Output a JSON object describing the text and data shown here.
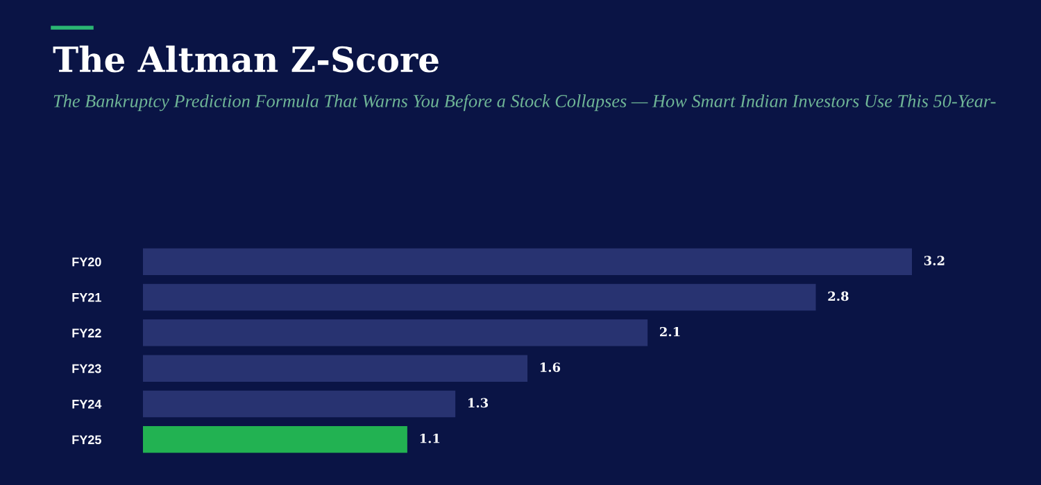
{
  "chart_data": {
    "type": "bar",
    "orientation": "horizontal",
    "title": "The Altman Z-Score",
    "subtitle": "The Bankruptcy Prediction Formula That Warns You Before a Stock Collapses — How Smart Indian Investors Use This 50-Year-",
    "categories": [
      "FY20",
      "FY21",
      "FY22",
      "FY23",
      "FY24",
      "FY25"
    ],
    "values": [
      3.2,
      2.8,
      2.1,
      1.6,
      1.3,
      1.1
    ],
    "colors": [
      "#283371",
      "#283371",
      "#283371",
      "#283371",
      "#283371",
      "#22b252"
    ],
    "data_labels": true,
    "grid": false,
    "legend": false
  }
}
